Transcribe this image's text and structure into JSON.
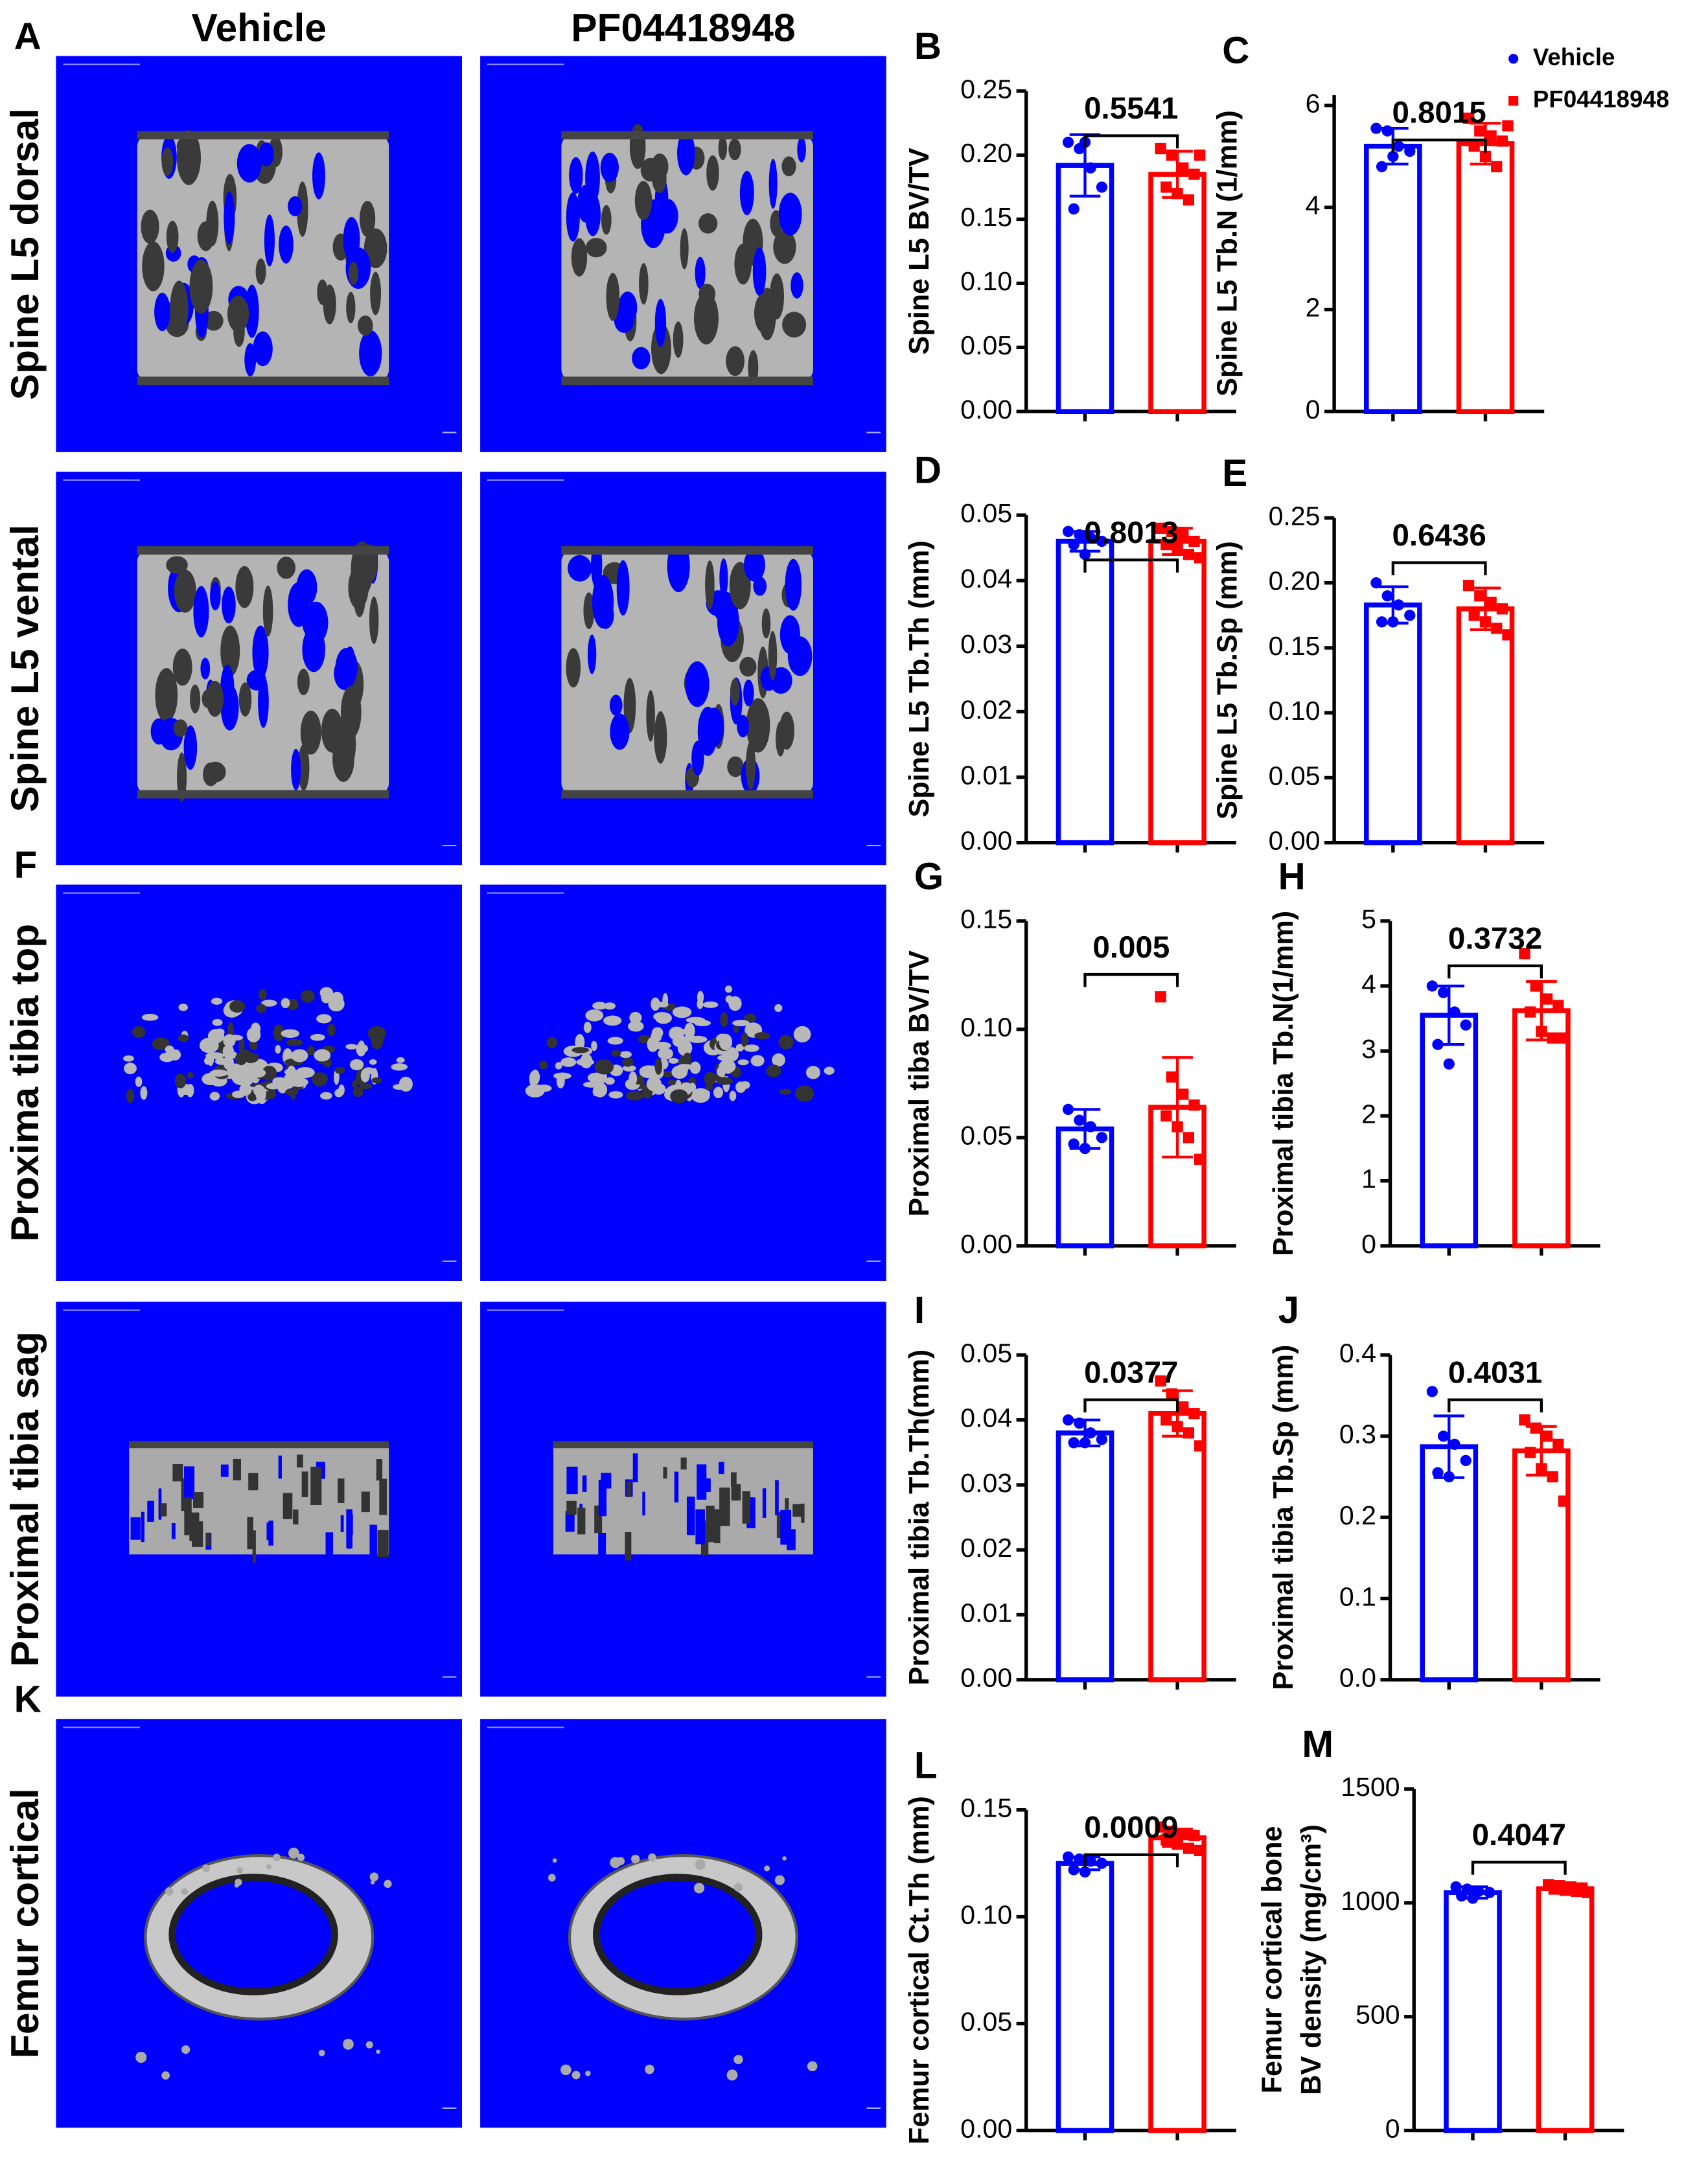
{
  "images": {
    "columns": [
      "Vehicle",
      "PF04418948"
    ],
    "rows": [
      {
        "label": "Spine L5 dorsal",
        "panel": "A"
      },
      {
        "label": "Spine L5 vental"
      },
      {
        "label": "Proxima tibia top",
        "panel": "F"
      },
      {
        "label": "Proximal tibia sag"
      },
      {
        "label": "Femur cortical",
        "panel": "K"
      }
    ]
  },
  "chart_data": [
    {
      "type": "bar",
      "panel": "B",
      "ylabel": "Spine L5 BV/TV",
      "annotation": "0.5541",
      "ylim": [
        0,
        0.25
      ],
      "yticks": [
        {
          "value": 0,
          "label": "0.00"
        },
        0.05,
        {
          "value": 0.1,
          "label": "0.10"
        },
        0.15,
        {
          "value": 0.2,
          "label": "0.20"
        },
        0.25
      ],
      "series": [
        {
          "color": "#0000ff",
          "values": [
            0.192
          ],
          "errors": [
            0.024
          ],
          "points": [
            0.21,
            0.205,
            0.19,
            0.175,
            0.158,
            0.21
          ]
        },
        {
          "color": "#ff0000",
          "values": [
            0.185
          ],
          "errors": [
            0.018
          ],
          "points": [
            0.205,
            0.2,
            0.19,
            0.185,
            0.175,
            0.17,
            0.165,
            0.2
          ]
        }
      ]
    },
    {
      "type": "bar",
      "panel": "C",
      "ylabel": "Spine L5 Tb.N (1/mm)",
      "annotation": "0.8015",
      "ylim": [
        0,
        6.2
      ],
      "yticks": [
        0,
        2,
        4,
        6
      ],
      "legend": "upper right",
      "series": [
        {
          "name": "Vehicle",
          "color": "#0000ff",
          "values": [
            5.2
          ],
          "errors": [
            0.35
          ],
          "points": [
            5.55,
            5.5,
            5.2,
            5.1,
            4.8,
            5.0
          ]
        },
        {
          "name": "PF04418948",
          "color": "#ff0000",
          "values": [
            5.25
          ],
          "errors": [
            0.4
          ],
          "points": [
            5.75,
            5.5,
            5.4,
            5.3,
            5.2,
            5.0,
            4.8,
            5.6
          ]
        }
      ]
    },
    {
      "type": "bar",
      "panel": "D",
      "ylabel": "Spine L5 Tb.Th (mm)",
      "annotation": "0.8013",
      "ylim": [
        0,
        0.05
      ],
      "yticks": [
        {
          "value": 0,
          "label": "0.00"
        },
        0.01,
        0.02,
        0.03,
        0.04,
        0.05
      ],
      "series": [
        {
          "color": "#0000ff",
          "values": [
            0.046
          ],
          "errors": [
            0.0015
          ],
          "points": [
            0.0475,
            0.047,
            0.0465,
            0.046,
            0.0455,
            0.044
          ]
        },
        {
          "color": "#ff0000",
          "values": [
            0.046
          ],
          "errors": [
            0.002
          ],
          "points": [
            0.048,
            0.0475,
            0.047,
            0.046,
            0.0455,
            0.045,
            0.044,
            0.0435
          ]
        }
      ]
    },
    {
      "type": "bar",
      "panel": "E",
      "ylabel": "Spine L5 Tb.Sp (mm)",
      "annotation": "0.6436",
      "ylim": [
        0,
        0.25
      ],
      "yticks": [
        {
          "value": 0,
          "label": "0.00"
        },
        0.05,
        {
          "value": 0.1,
          "label": "0.10"
        },
        0.15,
        {
          "value": 0.2,
          "label": "0.20"
        },
        0.25
      ],
      "series": [
        {
          "color": "#0000ff",
          "values": [
            0.183
          ],
          "errors": [
            0.014
          ],
          "points": [
            0.2,
            0.19,
            0.183,
            0.175,
            0.17,
            0.17
          ]
        },
        {
          "color": "#ff0000",
          "values": [
            0.18
          ],
          "errors": [
            0.016
          ],
          "points": [
            0.198,
            0.19,
            0.185,
            0.18,
            0.175,
            0.17,
            0.165,
            0.16
          ]
        }
      ]
    },
    {
      "type": "bar",
      "panel": "G",
      "ylabel": "Proximal tiba BV/TV",
      "annotation": "0.005",
      "ylim": [
        0,
        0.15
      ],
      "yticks": [
        {
          "value": 0,
          "label": "0.00"
        },
        0.05,
        {
          "value": 0.1,
          "label": "0.10"
        },
        0.15
      ],
      "series": [
        {
          "color": "#0000ff",
          "values": [
            0.054
          ],
          "errors": [
            0.009
          ],
          "points": [
            0.063,
            0.058,
            0.055,
            0.05,
            0.047,
            0.045
          ]
        },
        {
          "color": "#ff0000",
          "values": [
            0.064
          ],
          "errors": [
            0.023
          ],
          "points": [
            0.115,
            0.078,
            0.07,
            0.065,
            0.06,
            0.055,
            0.05,
            0.04
          ]
        }
      ]
    },
    {
      "type": "bar",
      "panel": "H",
      "ylabel": "Proximal tibia Tb.N(1/mm)",
      "annotation": "0.3732",
      "ylim": [
        0,
        5
      ],
      "yticks": [
        0,
        1,
        2,
        3,
        4,
        5
      ],
      "series": [
        {
          "color": "#0000ff",
          "values": [
            3.55
          ],
          "errors": [
            0.45
          ],
          "points": [
            4.0,
            3.9,
            3.6,
            3.4,
            3.1,
            2.8
          ]
        },
        {
          "color": "#ff0000",
          "values": [
            3.62
          ],
          "errors": [
            0.45
          ],
          "points": [
            4.5,
            4.0,
            3.8,
            3.7,
            3.6,
            3.3,
            3.2,
            3.2
          ]
        }
      ]
    },
    {
      "type": "bar",
      "panel": "I",
      "ylabel": "Proximal tibia Tb.Th(mm)",
      "annotation": "0.0377",
      "ylim": [
        0,
        0.05
      ],
      "yticks": [
        {
          "value": 0,
          "label": "0.00"
        },
        0.01,
        0.02,
        0.03,
        0.04,
        0.05
      ],
      "series": [
        {
          "color": "#0000ff",
          "values": [
            0.038
          ],
          "errors": [
            0.002
          ],
          "points": [
            0.04,
            0.0395,
            0.038,
            0.037,
            0.0365,
            0.0365
          ]
        },
        {
          "color": "#ff0000",
          "values": [
            0.041
          ],
          "errors": [
            0.0035
          ],
          "points": [
            0.046,
            0.044,
            0.042,
            0.041,
            0.04,
            0.039,
            0.038,
            0.036
          ]
        }
      ]
    },
    {
      "type": "bar",
      "panel": "J",
      "ylabel": "Proximal tibia Tb.Sp (mm)",
      "annotation": "0.4031",
      "ylim": [
        0,
        0.4
      ],
      "yticks": [
        {
          "value": 0,
          "label": "0.0"
        },
        0.1,
        0.2,
        0.3,
        0.4
      ],
      "series": [
        {
          "color": "#0000ff",
          "values": [
            0.287
          ],
          "errors": [
            0.038
          ],
          "points": [
            0.355,
            0.3,
            0.29,
            0.27,
            0.255,
            0.25
          ]
        },
        {
          "color": "#ff0000",
          "values": [
            0.282
          ],
          "errors": [
            0.03
          ],
          "points": [
            0.32,
            0.31,
            0.3,
            0.29,
            0.28,
            0.26,
            0.25,
            0.22
          ]
        }
      ]
    },
    {
      "type": "bar",
      "panel": "L",
      "ylabel": "Femur cortical Ct.Th (mm)",
      "annotation": "0.0009",
      "ylim": [
        0,
        0.15
      ],
      "yticks": [
        {
          "value": 0,
          "label": "0.00"
        },
        0.05,
        {
          "value": 0.1,
          "label": "0.10"
        },
        0.15
      ],
      "series": [
        {
          "color": "#0000ff",
          "values": [
            0.125
          ],
          "errors": [
            0.003
          ],
          "points": [
            0.128,
            0.127,
            0.126,
            0.125,
            0.122,
            0.121
          ]
        },
        {
          "color": "#ff0000",
          "values": [
            0.137
          ],
          "errors": [
            0.004
          ],
          "points": [
            0.142,
            0.14,
            0.139,
            0.138,
            0.136,
            0.134,
            0.132,
            0.131
          ]
        }
      ]
    },
    {
      "type": "bar",
      "panel": "M",
      "ylabel": [
        "Femur cortical bone",
        "BV density (mg/cm³)"
      ],
      "annotation": "0.4047",
      "ylim": [
        0,
        1500
      ],
      "yticks": [
        0,
        500,
        1000,
        1500
      ],
      "series": [
        {
          "color": "#0000ff",
          "values": [
            1045
          ],
          "errors": [
            25
          ],
          "points": [
            1070,
            1060,
            1050,
            1045,
            1030,
            1020
          ]
        },
        {
          "color": "#ff0000",
          "values": [
            1062
          ],
          "errors": [
            15
          ],
          "points": [
            1080,
            1075,
            1070,
            1065,
            1060,
            1055,
            1050,
            1045
          ]
        }
      ]
    }
  ]
}
